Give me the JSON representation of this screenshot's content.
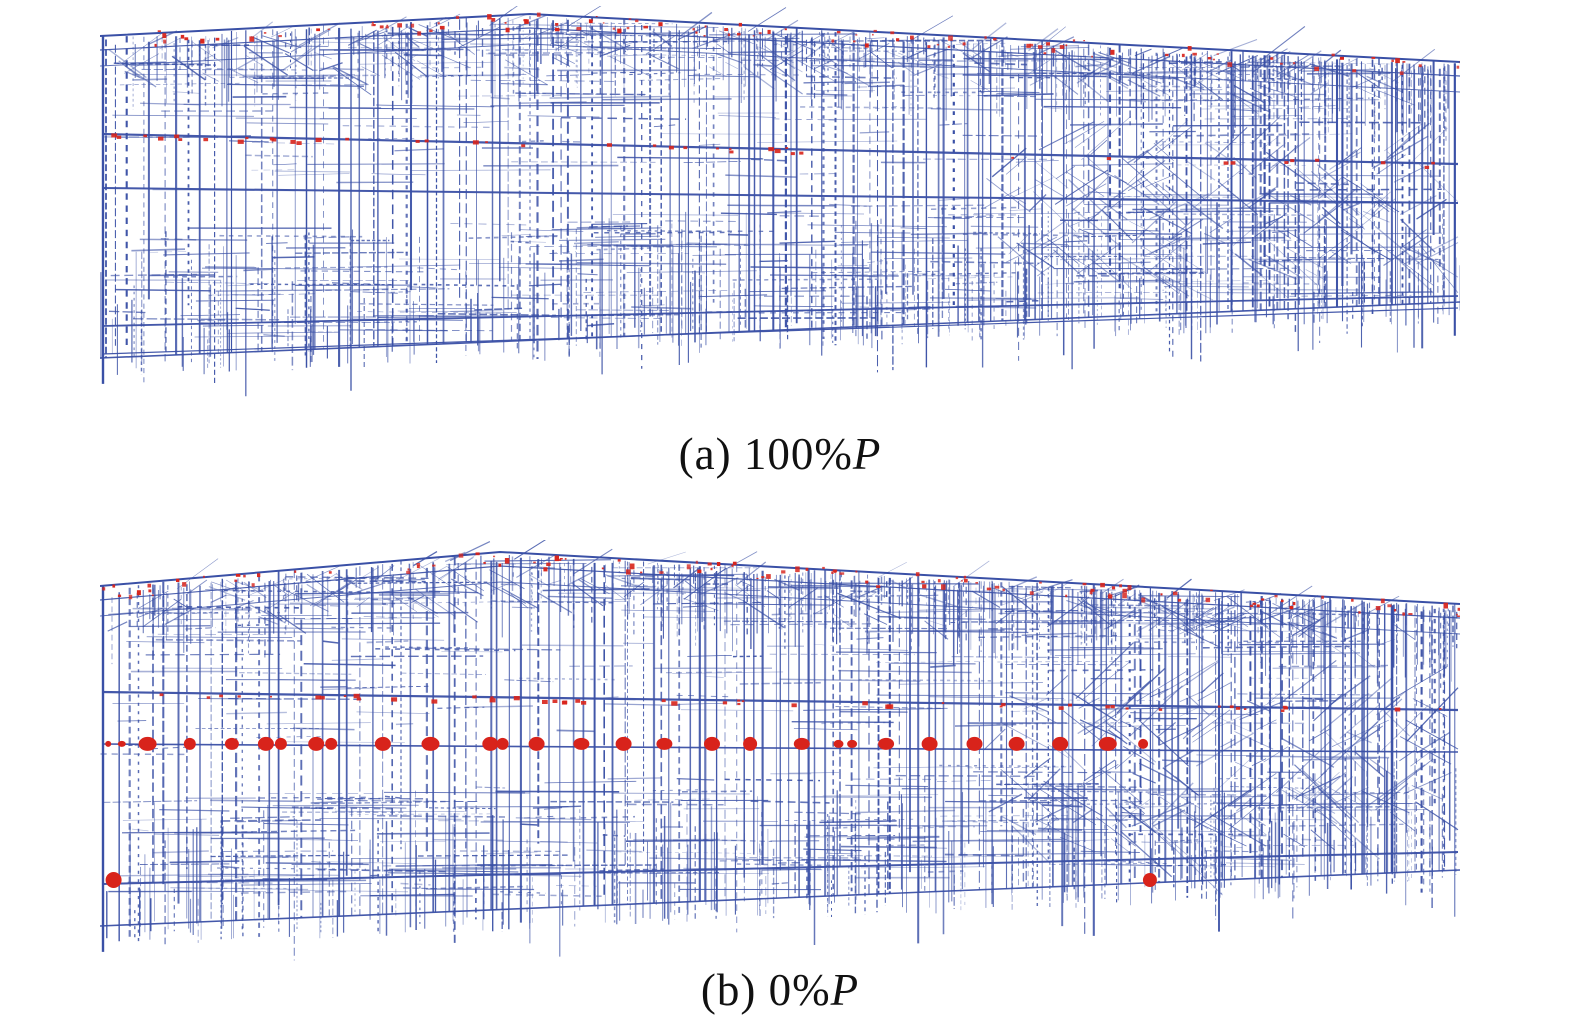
{
  "figure": {
    "colors": {
      "background": "#ffffff",
      "frame_blue": "#3a50a6",
      "hinge_red": "#d8231b"
    },
    "panels": [
      {
        "id": "a",
        "caption_prefix": "(a) 100%",
        "caption_symbol": "P",
        "hinges": []
      },
      {
        "id": "b",
        "caption_prefix": "(b) 0%",
        "caption_symbol": "P",
        "hinges": [
          [
            0.006,
            0.481,
            3,
            3
          ],
          [
            0.016,
            0.481,
            4,
            3
          ],
          [
            0.035,
            0.481,
            9,
            7
          ],
          [
            0.066,
            0.481,
            6,
            6
          ],
          [
            0.097,
            0.481,
            7,
            6
          ],
          [
            0.122,
            0.481,
            8,
            7
          ],
          [
            0.133,
            0.481,
            6,
            6
          ],
          [
            0.159,
            0.481,
            8,
            7
          ],
          [
            0.17,
            0.481,
            6,
            6
          ],
          [
            0.208,
            0.481,
            8,
            7
          ],
          [
            0.243,
            0.481,
            9,
            7
          ],
          [
            0.287,
            0.481,
            8,
            7
          ],
          [
            0.296,
            0.481,
            6,
            6
          ],
          [
            0.321,
            0.481,
            8,
            7
          ],
          [
            0.354,
            0.481,
            8,
            6
          ],
          [
            0.385,
            0.481,
            8,
            7
          ],
          [
            0.415,
            0.481,
            8,
            6
          ],
          [
            0.45,
            0.481,
            8,
            7
          ],
          [
            0.478,
            0.481,
            7,
            7
          ],
          [
            0.516,
            0.481,
            8,
            6
          ],
          [
            0.543,
            0.481,
            5,
            4
          ],
          [
            0.553,
            0.481,
            5,
            4
          ],
          [
            0.578,
            0.481,
            8,
            6
          ],
          [
            0.61,
            0.481,
            8,
            7
          ],
          [
            0.643,
            0.481,
            8,
            7
          ],
          [
            0.674,
            0.481,
            8,
            7
          ],
          [
            0.706,
            0.481,
            8,
            7
          ],
          [
            0.741,
            0.481,
            9,
            7
          ],
          [
            0.767,
            0.481,
            5,
            5
          ],
          [
            0.01,
            0.802,
            8,
            8
          ],
          [
            0.772,
            0.802,
            7,
            7
          ]
        ]
      }
    ]
  }
}
